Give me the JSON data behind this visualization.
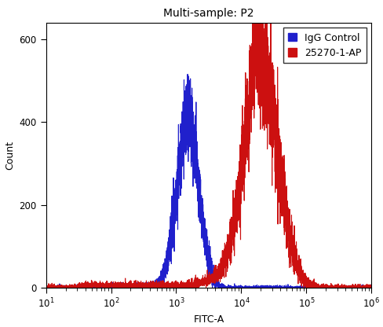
{
  "title": "Multi-sample: P2",
  "xlabel": "FITC-A",
  "ylabel": "Count",
  "xlim_log": [
    10,
    1000000
  ],
  "ylim": [
    0,
    640
  ],
  "yticks": [
    0,
    200,
    400,
    600
  ],
  "blue_label": "IgG Control",
  "red_label": "25270-1-AP",
  "blue_color": "#2020cc",
  "red_color": "#cc1010",
  "blue_peak_log": 3.18,
  "blue_peak_height": 410,
  "blue_sigma_log": 0.165,
  "red_peak_log": 4.32,
  "red_peak_height": 530,
  "red_sigma_log": 0.25,
  "background_color": "#ffffff",
  "title_fontsize": 10,
  "label_fontsize": 9,
  "tick_fontsize": 8.5,
  "legend_fontsize": 9
}
